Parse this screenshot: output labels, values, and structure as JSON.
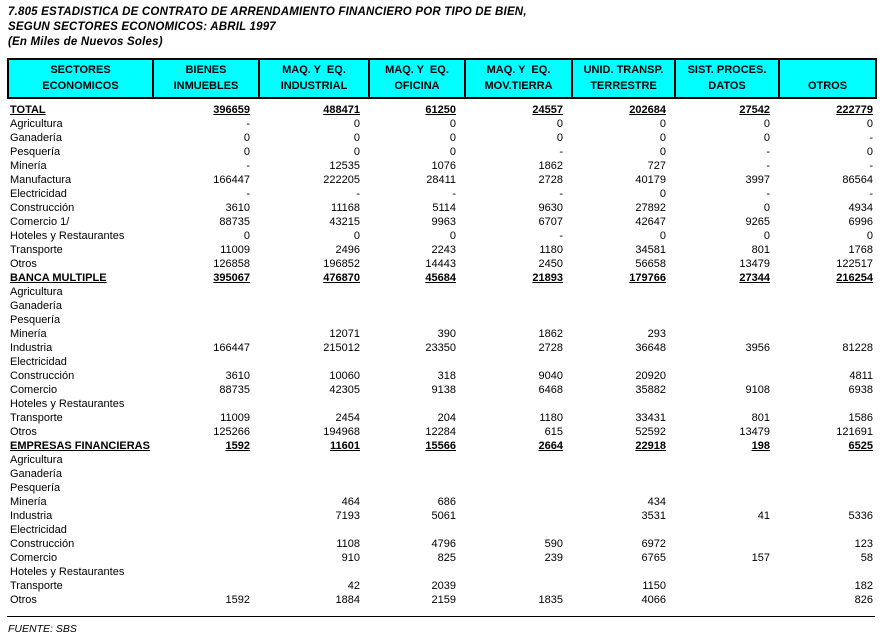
{
  "title": {
    "line1": "7.805  ESTADISTICA DE CONTRATO DE ARRENDAMIENTO FINANCIERO POR TIPO DE BIEN,",
    "line2": "SEGUN SECTORES ECONOMICOS: ABRIL 1997",
    "line3": "(En Miles de Nuevos Soles)"
  },
  "colors": {
    "header_bg": "#00ffff",
    "border": "#000000",
    "text": "#000000",
    "page_bg": "#ffffff"
  },
  "footer": {
    "source_label": "FUENTE: SBS"
  },
  "chart_data": {
    "type": "table",
    "title": "7.805 ESTADISTICA DE CONTRATO DE ARRENDAMIENTO FINANCIERO POR TIPO DE BIEN, SEGUN SECTORES ECONOMICOS: ABRIL 1997",
    "units": "En Miles de Nuevos Soles",
    "columns": [
      {
        "line1": "SECTORES",
        "line2": "ECONOMICOS"
      },
      {
        "line1": "BIENES",
        "line2": "INMUEBLES"
      },
      {
        "line1": "MAQ. Y  EQ.",
        "line2": "INDUSTRIAL"
      },
      {
        "line1": "MAQ. Y  EQ.",
        "line2": "OFICINA"
      },
      {
        "line1": "MAQ. Y  EQ.",
        "line2": "MOV.TIERRA"
      },
      {
        "line1": "UNID. TRANSP.",
        "line2": "TERRESTRE"
      },
      {
        "line1": "SIST. PROCES.",
        "line2": "DATOS"
      },
      {
        "line1": "",
        "line2": "OTROS"
      }
    ],
    "rows": [
      {
        "label": "TOTAL",
        "section": true,
        "values": [
          "396659",
          "488471",
          "61250",
          "24557",
          "202684",
          "27542",
          "222779"
        ]
      },
      {
        "label": "Agricultura",
        "section": false,
        "values": [
          "-",
          "0",
          "0",
          "0",
          "0",
          "0",
          "0"
        ]
      },
      {
        "label": "Ganadería",
        "section": false,
        "values": [
          "0",
          "0",
          "0",
          "0",
          "0",
          "0",
          "-"
        ]
      },
      {
        "label": "Pesquería",
        "section": false,
        "values": [
          "0",
          "0",
          "0",
          "-",
          "0",
          "-",
          "0"
        ]
      },
      {
        "label": "Minería",
        "section": false,
        "values": [
          "-",
          "12535",
          "1076",
          "1862",
          "727",
          "-",
          "-"
        ]
      },
      {
        "label": "Manufactura",
        "section": false,
        "values": [
          "166447",
          "222205",
          "28411",
          "2728",
          "40179",
          "3997",
          "86564"
        ]
      },
      {
        "label": "Electricidad",
        "section": false,
        "values": [
          "-",
          "-",
          "-",
          "-",
          "0",
          "-",
          "-"
        ]
      },
      {
        "label": "Construcción",
        "section": false,
        "values": [
          "3610",
          "11168",
          "5114",
          "9630",
          "27892",
          "0",
          "4934"
        ]
      },
      {
        "label": "Comercio 1/",
        "section": false,
        "values": [
          "88735",
          "43215",
          "9963",
          "6707",
          "42647",
          "9265",
          "6996"
        ]
      },
      {
        "label": "Hoteles y Restaurantes",
        "section": false,
        "values": [
          "0",
          "0",
          "0",
          "-",
          "0",
          "0",
          "0"
        ]
      },
      {
        "label": "Transporte",
        "section": false,
        "values": [
          "11009",
          "2496",
          "2243",
          "1180",
          "34581",
          "801",
          "1768"
        ]
      },
      {
        "label": "Otros",
        "section": false,
        "values": [
          "126858",
          "196852",
          "14443",
          "2450",
          "56658",
          "13479",
          "122517"
        ]
      },
      {
        "label": "BANCA MULTIPLE",
        "section": true,
        "values": [
          "395067",
          "476870",
          "45684",
          "21893",
          "179766",
          "27344",
          "216254"
        ]
      },
      {
        "label": "Agricultura",
        "section": false,
        "values": [
          "",
          "",
          "",
          "",
          "",
          "",
          ""
        ]
      },
      {
        "label": "Ganadería",
        "section": false,
        "values": [
          "",
          "",
          "",
          "",
          "",
          "",
          ""
        ]
      },
      {
        "label": "Pesquería",
        "section": false,
        "values": [
          "",
          "",
          "",
          "",
          "",
          "",
          ""
        ]
      },
      {
        "label": "Minería",
        "section": false,
        "values": [
          "",
          "12071",
          "390",
          "1862",
          "293",
          "",
          ""
        ]
      },
      {
        "label": "Industria",
        "section": false,
        "values": [
          "166447",
          "215012",
          "23350",
          "2728",
          "36648",
          "3956",
          "81228"
        ]
      },
      {
        "label": "Electricidad",
        "section": false,
        "values": [
          "",
          "",
          "",
          "",
          "",
          "",
          ""
        ]
      },
      {
        "label": "Construcción",
        "section": false,
        "values": [
          "3610",
          "10060",
          "318",
          "9040",
          "20920",
          "",
          "4811"
        ]
      },
      {
        "label": "Comercio",
        "section": false,
        "values": [
          "88735",
          "42305",
          "9138",
          "6468",
          "35882",
          "9108",
          "6938"
        ]
      },
      {
        "label": "Hoteles y Restaurantes",
        "section": false,
        "values": [
          "",
          "",
          "",
          "",
          "",
          "",
          ""
        ]
      },
      {
        "label": "Transporte",
        "section": false,
        "values": [
          "11009",
          "2454",
          "204",
          "1180",
          "33431",
          "801",
          "1586"
        ]
      },
      {
        "label": "Otros",
        "section": false,
        "values": [
          "125266",
          "194968",
          "12284",
          "615",
          "52592",
          "13479",
          "121691"
        ]
      },
      {
        "label": "EMPRESAS FINANCIERAS",
        "section": true,
        "values": [
          "1592",
          "11601",
          "15566",
          "2664",
          "22918",
          "198",
          "6525"
        ]
      },
      {
        "label": "Agricultura",
        "section": false,
        "values": [
          "",
          "",
          "",
          "",
          "",
          "",
          ""
        ]
      },
      {
        "label": "Ganadería",
        "section": false,
        "values": [
          "",
          "",
          "",
          "",
          "",
          "",
          ""
        ]
      },
      {
        "label": "Pesquería",
        "section": false,
        "values": [
          "",
          "",
          "",
          "",
          "",
          "",
          ""
        ]
      },
      {
        "label": "Minería",
        "section": false,
        "values": [
          "",
          "464",
          "686",
          "",
          "434",
          "",
          ""
        ]
      },
      {
        "label": "Industria",
        "section": false,
        "values": [
          "",
          "7193",
          "5061",
          "",
          "3531",
          "41",
          "5336"
        ]
      },
      {
        "label": "Electricidad",
        "section": false,
        "values": [
          "",
          "",
          "",
          "",
          "",
          "",
          ""
        ]
      },
      {
        "label": "Construcción",
        "section": false,
        "values": [
          "",
          "1108",
          "4796",
          "590",
          "6972",
          "",
          "123"
        ]
      },
      {
        "label": "Comercio",
        "section": false,
        "values": [
          "",
          "910",
          "825",
          "239",
          "6765",
          "157",
          "58"
        ]
      },
      {
        "label": "Hoteles y Restaurantes",
        "section": false,
        "values": [
          "",
          "",
          "",
          "",
          "",
          "",
          ""
        ]
      },
      {
        "label": "Transporte",
        "section": false,
        "values": [
          "",
          "42",
          "2039",
          "",
          "1150",
          "",
          "182"
        ]
      },
      {
        "label": "Otros",
        "section": false,
        "values": [
          "1592",
          "1884",
          "2159",
          "1835",
          "4066",
          "",
          "826"
        ]
      }
    ]
  }
}
